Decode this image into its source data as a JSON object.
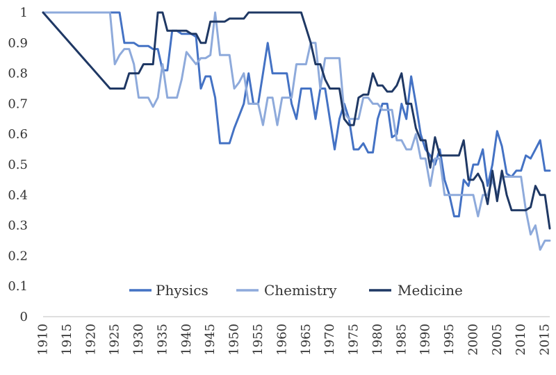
{
  "chart_data": {
    "type": "line",
    "title": "",
    "xlabel": "",
    "ylabel": "",
    "xlim": [
      1910,
      2016
    ],
    "ylim": [
      0,
      1
    ],
    "y_ticks": [
      "0",
      "0.1",
      "0.2",
      "0.3",
      "0.4",
      "0.5",
      "0.6",
      "0.7",
      "0.8",
      "0.9",
      "1"
    ],
    "x_ticks": [
      "1910",
      "1915",
      "1920",
      "1925",
      "1930",
      "1935",
      "1940",
      "1945",
      "1950",
      "1955",
      "1960",
      "1965",
      "1970",
      "1975",
      "1980",
      "1985",
      "1990",
      "1995",
      "2000",
      "2005",
      "2010",
      "2015"
    ],
    "grid": false,
    "legend_position": "bottom-center",
    "series": [
      {
        "name": "Physics",
        "color": "#4472c4",
        "x": [
          1910,
          1924,
          1925,
          1926,
          1927,
          1928,
          1929,
          1930,
          1931,
          1932,
          1933,
          1934,
          1935,
          1936,
          1937,
          1938,
          1939,
          1940,
          1941,
          1942,
          1943,
          1944,
          1945,
          1946,
          1947,
          1948,
          1949,
          1950,
          1951,
          1952,
          1953,
          1954,
          1955,
          1956,
          1957,
          1958,
          1959,
          1960,
          1961,
          1962,
          1963,
          1964,
          1965,
          1966,
          1967,
          1968,
          1969,
          1970,
          1971,
          1972,
          1973,
          1974,
          1975,
          1976,
          1977,
          1978,
          1979,
          1980,
          1981,
          1982,
          1983,
          1984,
          1985,
          1986,
          1987,
          1988,
          1989,
          1990,
          1991,
          1992,
          1993,
          1994,
          1995,
          1996,
          1997,
          1998,
          1999,
          2000,
          2001,
          2002,
          2003,
          2004,
          2005,
          2006,
          2007,
          2008,
          2009,
          2010,
          2011,
          2012,
          2013,
          2014,
          2015,
          2016
        ],
        "values": [
          1,
          1,
          1,
          1,
          0.9,
          0.9,
          0.9,
          0.89,
          0.89,
          0.89,
          0.88,
          0.88,
          0.81,
          0.81,
          0.94,
          0.94,
          0.93,
          0.93,
          0.93,
          0.92,
          0.75,
          0.79,
          0.79,
          0.72,
          0.57,
          0.57,
          0.57,
          0.62,
          0.66,
          0.7,
          0.8,
          0.7,
          0.7,
          0.8,
          0.9,
          0.8,
          0.8,
          0.8,
          0.8,
          0.7,
          0.65,
          0.75,
          0.75,
          0.75,
          0.65,
          0.75,
          0.75,
          0.65,
          0.55,
          0.65,
          0.7,
          0.65,
          0.55,
          0.55,
          0.57,
          0.54,
          0.54,
          0.65,
          0.7,
          0.7,
          0.59,
          0.6,
          0.7,
          0.65,
          0.79,
          0.7,
          0.6,
          0.55,
          0.53,
          0.5,
          0.55,
          0.45,
          0.4,
          0.33,
          0.33,
          0.45,
          0.43,
          0.5,
          0.5,
          0.55,
          0.43,
          0.5,
          0.61,
          0.56,
          0.47,
          0.46,
          0.48,
          0.48,
          0.53,
          0.52,
          0.55,
          0.58,
          0.48,
          0.48
        ]
      },
      {
        "name": "Chemistry",
        "color": "#8eaadb",
        "x": [
          1910,
          1924,
          1925,
          1926,
          1927,
          1928,
          1929,
          1930,
          1931,
          1932,
          1933,
          1934,
          1935,
          1936,
          1937,
          1938,
          1939,
          1940,
          1941,
          1942,
          1943,
          1944,
          1945,
          1946,
          1947,
          1948,
          1949,
          1950,
          1951,
          1952,
          1953,
          1954,
          1955,
          1956,
          1957,
          1958,
          1959,
          1960,
          1961,
          1962,
          1963,
          1964,
          1965,
          1966,
          1967,
          1968,
          1969,
          1970,
          1971,
          1972,
          1973,
          1974,
          1975,
          1976,
          1977,
          1978,
          1979,
          1980,
          1981,
          1982,
          1983,
          1984,
          1985,
          1986,
          1987,
          1988,
          1989,
          1990,
          1991,
          1992,
          1993,
          1994,
          1995,
          1996,
          1997,
          1998,
          1999,
          2000,
          2001,
          2002,
          2003,
          2004,
          2005,
          2006,
          2007,
          2008,
          2009,
          2010,
          2011,
          2012,
          2013,
          2014,
          2015,
          2016
        ],
        "values": [
          1,
          1,
          0.83,
          0.86,
          0.88,
          0.88,
          0.83,
          0.72,
          0.72,
          0.72,
          0.69,
          0.72,
          0.83,
          0.72,
          0.72,
          0.72,
          0.78,
          0.87,
          0.85,
          0.83,
          0.85,
          0.85,
          0.86,
          1,
          0.86,
          0.86,
          0.86,
          0.75,
          0.77,
          0.8,
          0.7,
          0.7,
          0.7,
          0.63,
          0.72,
          0.72,
          0.63,
          0.72,
          0.72,
          0.72,
          0.83,
          0.83,
          0.83,
          0.9,
          0.9,
          0.75,
          0.85,
          0.85,
          0.85,
          0.85,
          0.67,
          0.65,
          0.65,
          0.65,
          0.72,
          0.72,
          0.7,
          0.7,
          0.68,
          0.68,
          0.68,
          0.58,
          0.58,
          0.55,
          0.55,
          0.6,
          0.52,
          0.52,
          0.43,
          0.52,
          0.52,
          0.4,
          0.4,
          0.4,
          0.4,
          0.4,
          0.4,
          0.4,
          0.33,
          0.4,
          0.4,
          0.45,
          0.4,
          0.46,
          0.46,
          0.46,
          0.46,
          0.46,
          0.35,
          0.27,
          0.3,
          0.22,
          0.25,
          0.25
        ]
      },
      {
        "name": "Medicine",
        "color": "#1f3864",
        "x": [
          1910,
          1924,
          1925,
          1926,
          1927,
          1928,
          1929,
          1930,
          1931,
          1932,
          1933,
          1934,
          1935,
          1936,
          1937,
          1938,
          1939,
          1940,
          1941,
          1942,
          1943,
          1944,
          1945,
          1946,
          1947,
          1948,
          1949,
          1950,
          1951,
          1952,
          1953,
          1954,
          1955,
          1956,
          1957,
          1958,
          1959,
          1960,
          1961,
          1962,
          1963,
          1964,
          1965,
          1966,
          1967,
          1968,
          1969,
          1970,
          1971,
          1972,
          1973,
          1974,
          1975,
          1976,
          1977,
          1978,
          1979,
          1980,
          1981,
          1982,
          1983,
          1984,
          1985,
          1986,
          1987,
          1988,
          1989,
          1990,
          1991,
          1992,
          1993,
          1994,
          1995,
          1996,
          1997,
          1998,
          1999,
          2000,
          2001,
          2002,
          2003,
          2004,
          2005,
          2006,
          2007,
          2008,
          2009,
          2010,
          2011,
          2012,
          2013,
          2014,
          2015,
          2016
        ],
        "values": [
          1,
          0.75,
          0.75,
          0.75,
          0.75,
          0.8,
          0.8,
          0.8,
          0.83,
          0.83,
          0.83,
          1,
          1,
          0.94,
          0.94,
          0.94,
          0.94,
          0.94,
          0.93,
          0.93,
          0.9,
          0.9,
          0.97,
          0.97,
          0.97,
          0.97,
          0.98,
          0.98,
          0.98,
          0.98,
          1,
          1,
          1,
          1,
          1,
          1,
          1,
          1,
          1,
          1,
          1,
          1,
          0.95,
          0.9,
          0.83,
          0.83,
          0.78,
          0.75,
          0.75,
          0.75,
          0.65,
          0.63,
          0.63,
          0.72,
          0.73,
          0.73,
          0.8,
          0.76,
          0.76,
          0.74,
          0.74,
          0.76,
          0.8,
          0.7,
          0.7,
          0.62,
          0.58,
          0.58,
          0.49,
          0.59,
          0.53,
          0.53,
          0.53,
          0.53,
          0.53,
          0.58,
          0.45,
          0.45,
          0.47,
          0.44,
          0.37,
          0.48,
          0.38,
          0.48,
          0.4,
          0.35,
          0.35,
          0.35,
          0.35,
          0.36,
          0.43,
          0.4,
          0.4,
          0.29
        ]
      }
    ]
  }
}
